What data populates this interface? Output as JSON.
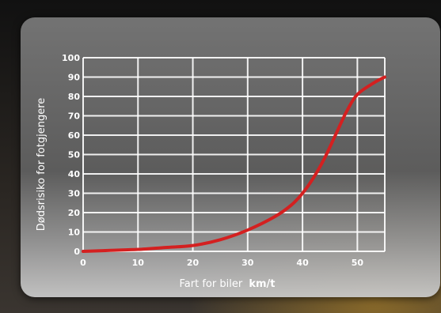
{
  "chart_data": {
    "type": "line",
    "title": "",
    "xlabel": "Fart for biler",
    "xlabel_unit": "km/t",
    "ylabel": "Dødsrisiko for fotgjengere",
    "xlim": [
      0,
      55
    ],
    "ylim": [
      0,
      100
    ],
    "x_ticks": [
      "0",
      "10",
      "20",
      "30",
      "40",
      "50"
    ],
    "y_ticks": [
      "0",
      "10",
      "20",
      "30",
      "40",
      "50",
      "60",
      "70",
      "80",
      "90",
      "100"
    ],
    "grid": true,
    "series": [
      {
        "color": "#d42020",
        "x": [
          0,
          5,
          10,
          15,
          20,
          25,
          30,
          35,
          38,
          40,
          42,
          44,
          46,
          48,
          50,
          53,
          55
        ],
        "y": [
          0,
          0.5,
          1,
          2,
          3,
          6,
          11,
          18,
          24,
          30,
          38,
          48,
          60,
          72,
          81,
          87,
          90
        ]
      }
    ]
  },
  "colors": {
    "line": "#d42020",
    "grid": "#ffffff",
    "text": "#ffffff"
  }
}
